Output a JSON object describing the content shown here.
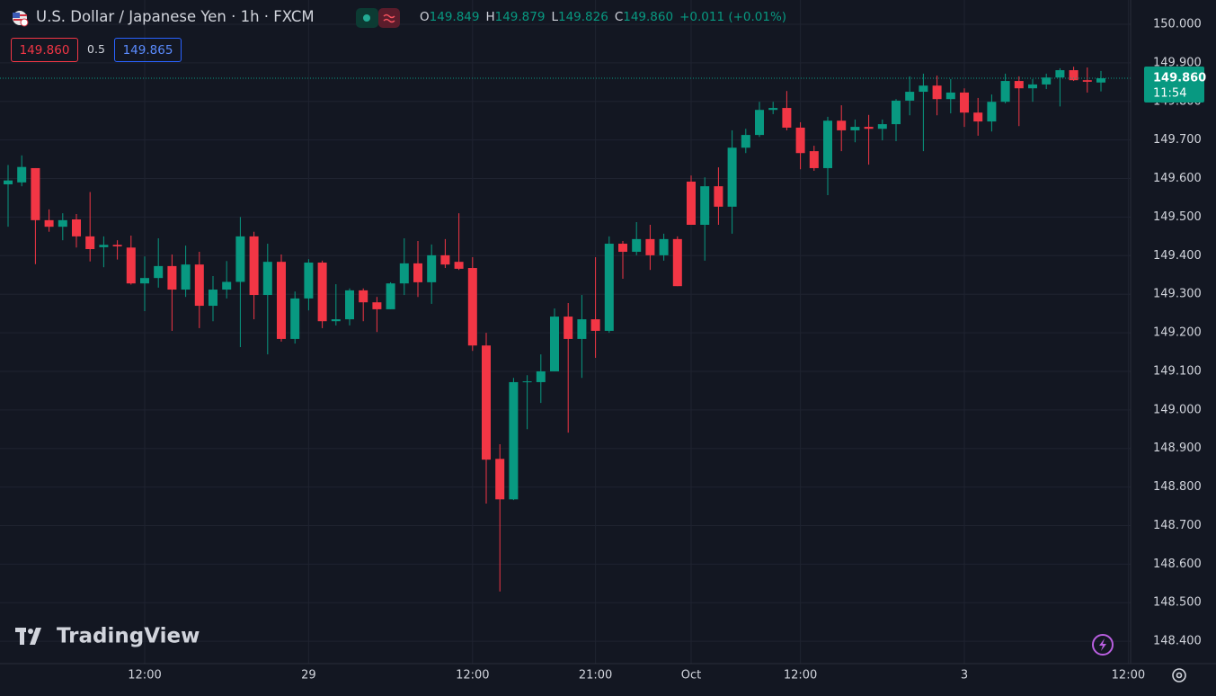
{
  "header": {
    "title": "U.S. Dollar / Japanese Yen · 1h · FXCM",
    "ohlc": [
      {
        "key": "O",
        "value": "149.849"
      },
      {
        "key": "H",
        "value": "149.879"
      },
      {
        "key": "L",
        "value": "149.826"
      },
      {
        "key": "C",
        "value": "149.860"
      }
    ],
    "change": "+0.011 (+0.01%)",
    "bid": "149.860",
    "spread": "0.5",
    "ask": "149.865"
  },
  "price_tag": {
    "price": "149.860",
    "countdown": "11:54"
  },
  "logo": "TradingView",
  "chart_data": {
    "type": "candlestick",
    "up_color": "#089981",
    "down_color": "#f23645",
    "grid": true,
    "categories": [
      null,
      null,
      null,
      null,
      null,
      null,
      null,
      null,
      null,
      null,
      "12:00",
      null,
      null,
      null,
      null,
      null,
      null,
      null,
      null,
      null,
      null,
      null,
      "29",
      null,
      null,
      null,
      null,
      null,
      null,
      null,
      null,
      null,
      null,
      null,
      "12:00",
      null,
      null,
      null,
      null,
      null,
      null,
      null,
      null,
      "21:00",
      null,
      null,
      null,
      null,
      null,
      null,
      "Oct",
      null,
      null,
      null,
      null,
      null,
      null,
      null,
      "12:00",
      null,
      null,
      null,
      null,
      null,
      null,
      null,
      null,
      null,
      null,
      null,
      "3",
      null,
      null,
      null,
      null,
      null,
      null,
      null,
      null,
      null,
      null,
      null,
      "12:00"
    ],
    "open": [
      149.585,
      149.59,
      149.627,
      149.492,
      149.475,
      149.494,
      149.45,
      149.422,
      149.428,
      149.421,
      149.328,
      149.342,
      149.373,
      149.312,
      149.377,
      149.27,
      149.312,
      149.332,
      149.45,
      149.298,
      149.384,
      149.184,
      149.289,
      149.382,
      149.23,
      149.235,
      149.31,
      149.279,
      149.261,
      149.328,
      149.38,
      149.331,
      149.401,
      149.384,
      149.368,
      149.167,
      148.873,
      148.768,
      149.072,
      149.072,
      149.1,
      149.242,
      149.184,
      149.235,
      149.205,
      149.431,
      149.41,
      149.443,
      149.401,
      149.443,
      149.592,
      149.48,
      149.58,
      149.527,
      149.68,
      149.713,
      149.778,
      149.783,
      149.732,
      149.671,
      149.627,
      149.75,
      149.725,
      149.734,
      149.729,
      149.741,
      149.802,
      149.825,
      149.841,
      149.806,
      149.823,
      149.771,
      149.748,
      149.799,
      149.853,
      149.834,
      149.844,
      149.862,
      149.881,
      149.855,
      149.849,
      null,
      null
    ],
    "high": [
      149.635,
      149.66,
      149.627,
      149.52,
      149.51,
      149.508,
      149.565,
      149.45,
      149.44,
      149.452,
      149.398,
      149.445,
      149.403,
      149.426,
      149.41,
      149.347,
      149.386,
      149.5,
      149.462,
      149.431,
      149.403,
      149.307,
      149.391,
      149.387,
      149.326,
      149.315,
      149.315,
      149.293,
      149.331,
      149.445,
      149.438,
      149.429,
      149.443,
      149.51,
      149.396,
      149.2,
      148.911,
      149.083,
      149.09,
      149.144,
      149.263,
      149.277,
      149.298,
      149.396,
      149.45,
      149.438,
      149.487,
      149.48,
      149.457,
      149.45,
      149.608,
      149.603,
      149.629,
      149.725,
      149.729,
      149.799,
      149.799,
      149.827,
      149.746,
      149.685,
      149.76,
      149.79,
      149.753,
      149.765,
      149.753,
      149.806,
      149.865,
      149.872,
      149.867,
      149.858,
      149.834,
      149.809,
      149.818,
      149.872,
      149.865,
      149.858,
      149.872,
      149.886,
      149.89,
      149.888,
      149.879,
      null,
      null
    ],
    "low": [
      149.475,
      149.58,
      149.378,
      149.462,
      149.44,
      149.421,
      149.385,
      149.37,
      149.39,
      149.325,
      149.256,
      149.317,
      149.205,
      149.293,
      149.212,
      149.23,
      149.289,
      149.163,
      149.235,
      149.144,
      149.177,
      149.172,
      149.258,
      149.212,
      149.219,
      149.219,
      149.23,
      149.202,
      149.261,
      149.298,
      149.293,
      149.275,
      149.368,
      149.363,
      149.153,
      148.757,
      148.529,
      148.766,
      148.95,
      149.018,
      149.1,
      148.941,
      149.083,
      149.135,
      149.2,
      149.34,
      149.401,
      149.363,
      149.387,
      149.321,
      149.48,
      149.387,
      149.48,
      149.457,
      149.666,
      149.708,
      149.767,
      149.725,
      149.624,
      149.62,
      149.557,
      149.671,
      149.694,
      149.636,
      149.699,
      149.697,
      149.764,
      149.671,
      149.764,
      149.769,
      149.734,
      149.711,
      149.722,
      149.795,
      149.736,
      149.799,
      149.832,
      149.787,
      149.853,
      149.823,
      149.826,
      null,
      null
    ],
    "close": [
      149.595,
      149.63,
      149.492,
      149.475,
      149.492,
      149.45,
      149.417,
      149.428,
      149.424,
      149.328,
      149.342,
      149.373,
      149.312,
      149.377,
      149.27,
      149.312,
      149.332,
      149.45,
      149.298,
      149.384,
      149.184,
      149.289,
      149.382,
      149.23,
      149.235,
      149.31,
      149.279,
      149.261,
      149.328,
      149.38,
      149.331,
      149.401,
      149.377,
      149.366,
      149.167,
      148.871,
      148.768,
      149.072,
      149.074,
      149.1,
      149.242,
      149.184,
      149.235,
      149.205,
      149.431,
      149.41,
      149.443,
      149.401,
      149.443,
      149.321,
      149.48,
      149.58,
      149.527,
      149.68,
      149.713,
      149.778,
      149.783,
      149.732,
      149.666,
      149.627,
      149.75,
      149.725,
      149.734,
      149.729,
      149.741,
      149.802,
      149.825,
      149.841,
      149.806,
      149.823,
      149.771,
      149.748,
      149.799,
      149.853,
      149.834,
      149.844,
      149.862,
      149.881,
      149.855,
      149.851,
      149.86,
      null,
      null
    ],
    "ylim": [
      148.342,
      150.063
    ],
    "yticks": [
      {
        "value": 150.0,
        "label": "150.000"
      },
      {
        "value": 149.9,
        "label": "149.900"
      },
      {
        "value": 149.8,
        "label": "149.800"
      },
      {
        "value": 149.7,
        "label": "149.700"
      },
      {
        "value": 149.6,
        "label": "149.600"
      },
      {
        "value": 149.5,
        "label": "149.500"
      },
      {
        "value": 149.4,
        "label": "149.400"
      },
      {
        "value": 149.3,
        "label": "149.300"
      },
      {
        "value": 149.2,
        "label": "149.200"
      },
      {
        "value": 149.1,
        "label": "149.100"
      },
      {
        "value": 149.0,
        "label": "149.000"
      },
      {
        "value": 148.9,
        "label": "148.900"
      },
      {
        "value": 148.8,
        "label": "148.800"
      },
      {
        "value": 148.7,
        "label": "148.700"
      },
      {
        "value": 148.6,
        "label": "148.600"
      },
      {
        "value": 148.5,
        "label": "148.500"
      },
      {
        "value": 148.4,
        "label": "148.400"
      }
    ]
  }
}
